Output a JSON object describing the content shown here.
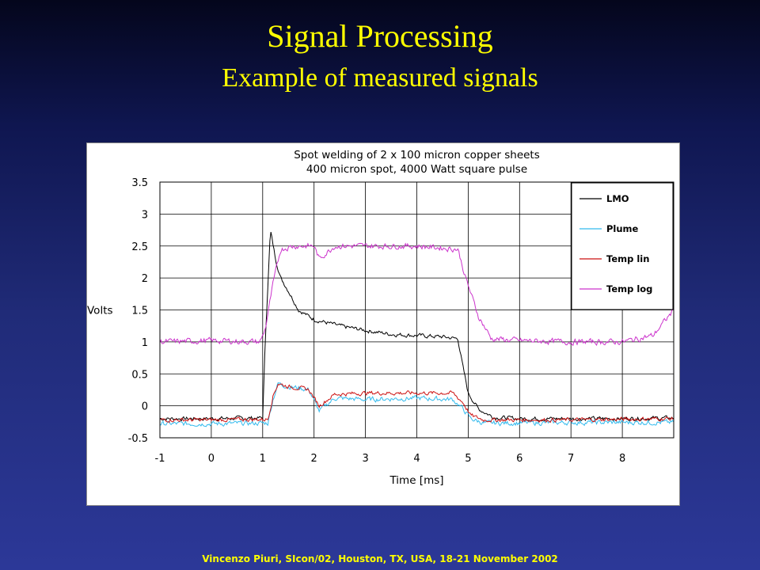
{
  "slide": {
    "title": "Signal Processing",
    "subtitle": "Example of measured signals",
    "footer": "Vincenzo Piuri, SIcon/02, Houston, TX, USA, 18-21 November 2002"
  },
  "colors": {
    "title_text": "#ffff00",
    "background_top": "#04061c",
    "background_bottom": "#2c3898",
    "chart_background": "#ffffff"
  },
  "chart_data": {
    "type": "line",
    "title_lines": [
      "Spot welding of 2 x 100 micron copper sheets",
      "400 micron spot, 4000 Watt square pulse"
    ],
    "xlabel": "Time [ms]",
    "ylabel": "Volts",
    "xlim": [
      -1,
      9
    ],
    "ylim": [
      -0.5,
      3.5
    ],
    "xticks": [
      -1,
      0,
      1,
      2,
      3,
      4,
      5,
      6,
      7,
      8
    ],
    "yticks": [
      -0.5,
      0,
      0.5,
      1,
      1.5,
      2,
      2.5,
      3,
      3.5
    ],
    "grid": true,
    "legend_position": "top-right",
    "series": [
      {
        "name": "LMO",
        "color": "#000000",
        "x": [
          -1,
          0,
          1,
          1.05,
          1.15,
          1.25,
          1.35,
          1.5,
          1.7,
          2.0,
          2.5,
          3.0,
          3.5,
          4.0,
          4.5,
          4.8,
          4.9,
          5.0,
          5.2,
          5.5,
          6,
          7,
          8,
          9
        ],
        "y": [
          -0.2,
          -0.2,
          -0.19,
          1.0,
          2.75,
          2.3,
          2.0,
          1.8,
          1.5,
          1.35,
          1.25,
          1.18,
          1.12,
          1.1,
          1.08,
          1.05,
          0.6,
          0.2,
          -0.05,
          -0.18,
          -0.2,
          -0.2,
          -0.2,
          -0.19
        ],
        "noise": 0.05
      },
      {
        "name": "Plume",
        "color": "#33bbee",
        "x": [
          -1,
          0,
          1.1,
          1.2,
          1.3,
          1.5,
          1.7,
          1.9,
          2.1,
          2.4,
          3,
          4,
          4.7,
          4.9,
          5.05,
          5.3,
          6,
          7,
          8,
          9
        ],
        "y": [
          -0.28,
          -0.28,
          -0.27,
          0.1,
          0.35,
          0.3,
          0.28,
          0.25,
          -0.08,
          0.12,
          0.1,
          0.12,
          0.1,
          -0.05,
          -0.2,
          -0.27,
          -0.27,
          -0.26,
          -0.26,
          -0.26
        ],
        "noise": 0.06
      },
      {
        "name": "Temp lin",
        "color": "#cc1111",
        "x": [
          -1,
          0,
          1.1,
          1.2,
          1.3,
          1.5,
          1.7,
          1.9,
          2.1,
          2.4,
          3,
          4,
          4.7,
          4.9,
          5.05,
          5.3,
          6,
          7,
          8,
          9
        ],
        "y": [
          -0.22,
          -0.22,
          -0.21,
          0.15,
          0.35,
          0.3,
          0.28,
          0.25,
          0.0,
          0.18,
          0.2,
          0.2,
          0.2,
          0.05,
          -0.15,
          -0.22,
          -0.22,
          -0.22,
          -0.21,
          -0.2
        ],
        "noise": 0.05
      },
      {
        "name": "Temp log",
        "color": "#cc33cc",
        "x": [
          -1,
          0,
          0.95,
          1.05,
          1.2,
          1.35,
          1.6,
          2.0,
          2.1,
          2.4,
          3,
          4,
          4.8,
          4.95,
          5.2,
          5.45,
          6,
          7,
          8,
          8.6,
          9
        ],
        "y": [
          1.0,
          1.02,
          1.0,
          1.2,
          1.9,
          2.45,
          2.5,
          2.5,
          2.3,
          2.5,
          2.5,
          2.5,
          2.45,
          2.0,
          1.4,
          1.05,
          1.02,
          1.0,
          1.0,
          1.1,
          1.5
        ],
        "noise": 0.07
      }
    ]
  }
}
